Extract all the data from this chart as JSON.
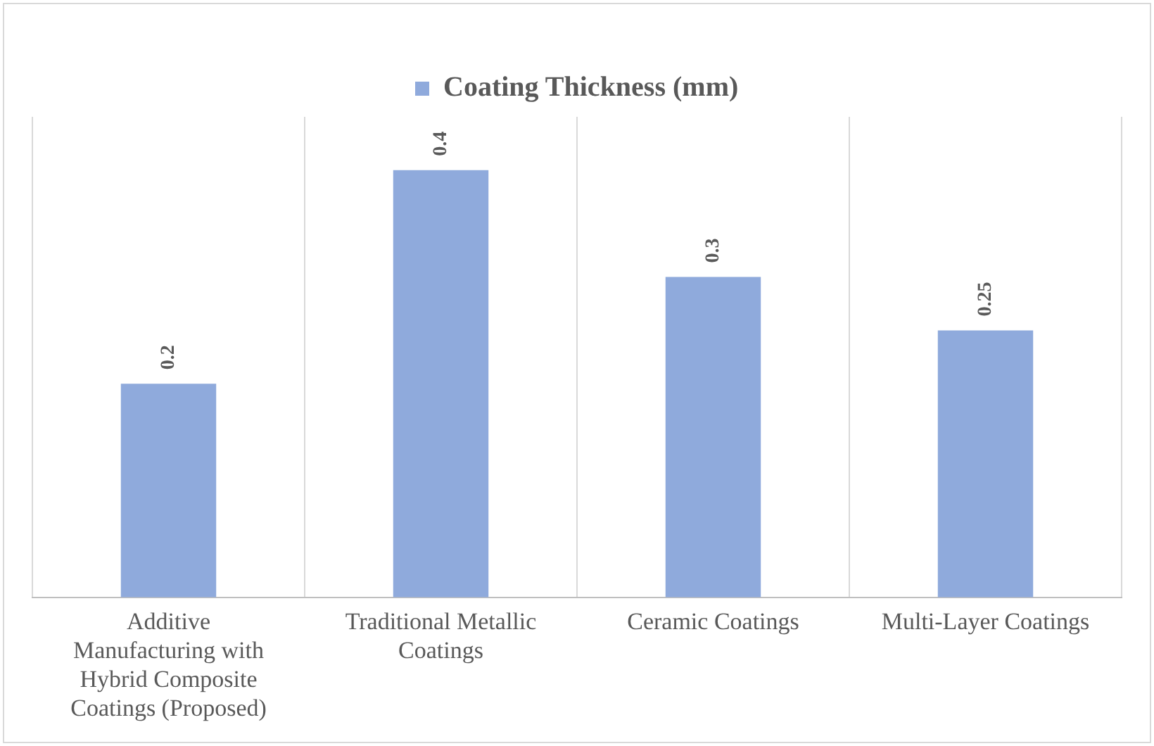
{
  "chart_data": {
    "type": "bar",
    "categories": [
      "Additive Manufacturing with Hybrid Composite Coatings (Proposed)",
      "Traditional Metallic Coatings",
      "Ceramic Coatings",
      "Multi-Layer Coatings"
    ],
    "series": [
      {
        "name": "Coating Thickness (mm)",
        "color": "#8faadc",
        "values": [
          0.2,
          0.4,
          0.3,
          0.25
        ]
      }
    ],
    "data_labels": true,
    "grid": "x",
    "legend": "top"
  }
}
